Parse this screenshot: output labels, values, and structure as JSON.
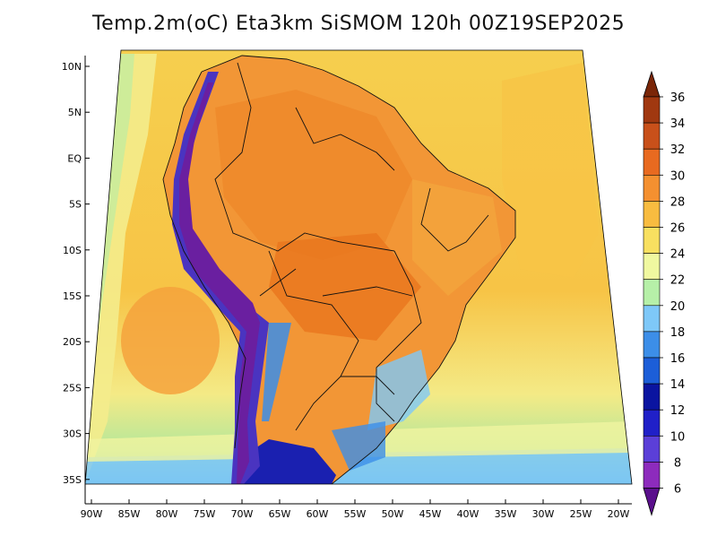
{
  "title": "Temp.2m(oC) Eta3km SiSMOM 120h 00Z19SEP2025",
  "lat_labels": [
    "10N",
    "5N",
    "EQ",
    "5S",
    "10S",
    "15S",
    "20S",
    "25S",
    "30S",
    "35S"
  ],
  "lon_labels": [
    "90W",
    "85W",
    "80W",
    "75W",
    "70W",
    "65W",
    "60W",
    "55W",
    "50W",
    "45W",
    "40W",
    "35W",
    "30W",
    "25W",
    "20W"
  ],
  "colorbar": {
    "labels": [
      "6",
      "8",
      "10",
      "12",
      "14",
      "16",
      "18",
      "20",
      "22",
      "24",
      "26",
      "28",
      "30",
      "32",
      "34",
      "36"
    ],
    "colors": [
      "#5a0f8c",
      "#8d2bbd",
      "#5b3fd8",
      "#2020c8",
      "#0a14a0",
      "#1c5ed8",
      "#3c8ee8",
      "#7ec8f8",
      "#b6f0a8",
      "#f0f8a0",
      "#f8e060",
      "#f8bc40",
      "#f49030",
      "#e86a20",
      "#c8501a",
      "#a03810",
      "#7a2608"
    ]
  },
  "colors": {
    "ocean_warm": "#f7c94a",
    "ocean_cool": "#f4ef88",
    "ocean_cold": "#b6e79a",
    "land_hot": "#f28e34",
    "land_warm": "#f5a840",
    "andes_cold": "#3a2fb8",
    "andes_very_cold": "#6a1fa0",
    "south_cold": "#1a1aa8",
    "border_line": "#111111"
  }
}
